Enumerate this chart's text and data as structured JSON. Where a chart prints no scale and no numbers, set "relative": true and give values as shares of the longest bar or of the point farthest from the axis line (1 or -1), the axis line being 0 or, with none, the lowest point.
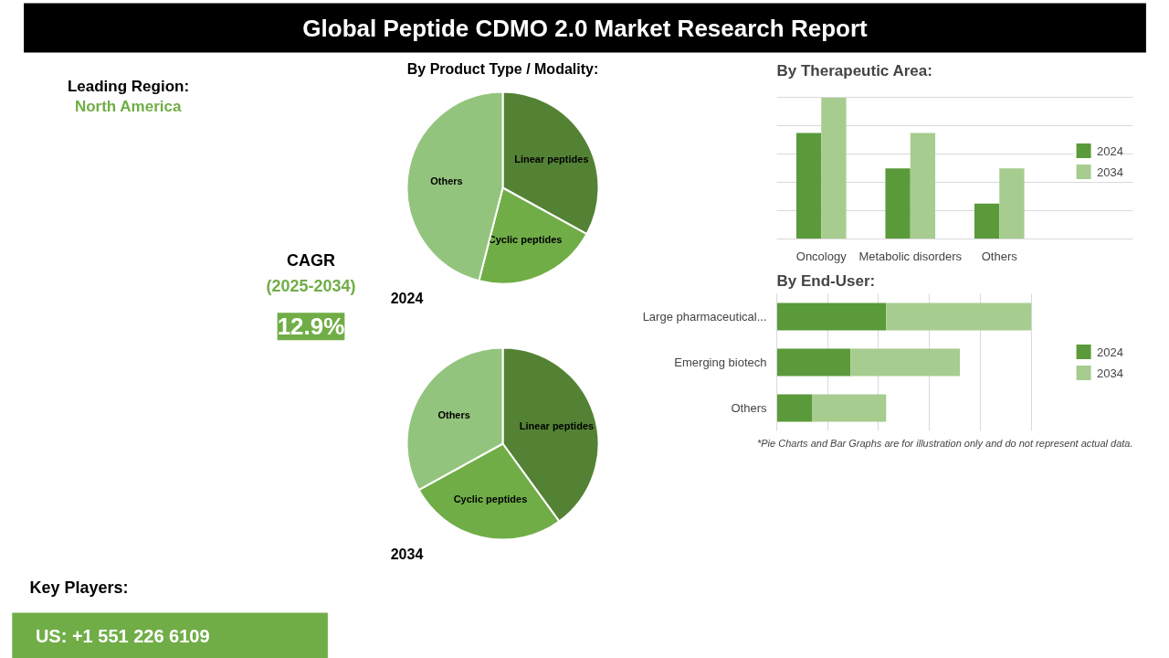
{
  "chart_data": [
    {
      "type": "other",
      "title": "Global Peptide CDMO 2.0 Market Research Report",
      "annotations": [
        "Leading Region:",
        "North America",
        "CAGR",
        "(2025-2034)",
        "12.9%",
        "Key Players:",
        "US: +1 551 226 6109"
      ]
    },
    {
      "type": "pie",
      "title": "By Product Type / Modality:",
      "subtitle": "2024",
      "categories": [
        "Linear peptides",
        "Cyclic peptides",
        "Others"
      ],
      "values": [
        33,
        21,
        46
      ],
      "colors": [
        "#548235",
        "#70ad47",
        "#93c47d"
      ]
    },
    {
      "type": "pie",
      "subtitle": "2034",
      "categories": [
        "Linear peptides",
        "Cyclic peptides",
        "Others"
      ],
      "values": [
        40,
        27,
        33
      ],
      "colors": [
        "#548235",
        "#70ad47",
        "#93c47d"
      ]
    },
    {
      "type": "bar",
      "title": "By Therapeutic Area:",
      "relative": true,
      "grid": "y",
      "legend": "right",
      "categories": [
        "Oncology",
        "Metabolic disorders",
        "Others"
      ],
      "series": [
        {
          "name": "2024",
          "color": "#5a9a3a",
          "values": [
            0.75,
            0.5,
            0.25
          ]
        },
        {
          "name": "2034",
          "color": "#a6cc8f",
          "values": [
            1,
            0.75,
            0.5
          ]
        }
      ]
    },
    {
      "type": "bar",
      "title": "By End-User:",
      "relative": true,
      "orientation": "horizontal",
      "stacked": true,
      "grid": "x",
      "legend": "right",
      "categories": [
        "Large pharmaceutical...",
        "Emerging biotech",
        "Others"
      ],
      "series": [
        {
          "name": "2024",
          "color": "#5a9a3a",
          "values": [
            0.43,
            0.29,
            0.14
          ]
        },
        {
          "name": "2034",
          "color": "#a6cc8f",
          "values": [
            0.57,
            0.43,
            0.29
          ]
        }
      ],
      "annotations": [
        "*Pie Charts and Bar Graphs are for illustration only and do not represent actual data."
      ]
    }
  ]
}
